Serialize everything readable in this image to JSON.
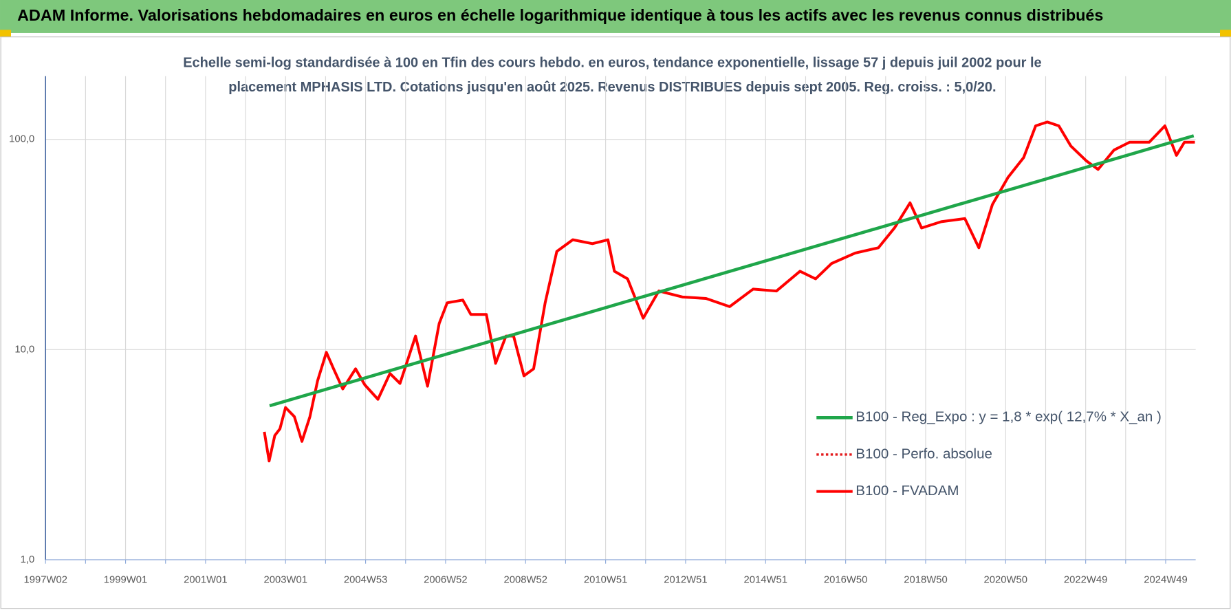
{
  "chart_data": {
    "type": "line",
    "title": "ADAM Informe. Valorisations hebdomadaires en euros en échelle logarithmique identique à tous les actifs avec les revenus connus distribués",
    "subtitle": [
      "Echelle semi-log standardisée à 100 en Tfin des cours hebdo. en euros, tendance exponentielle, lissage 57 j depuis juil 2002 pour le",
      "placement MPHASIS LTD. Cotations jusqu'en août 2025. Revenus DISTRIBUES depuis sept 2005. Reg. croiss. : 5,0/20."
    ],
    "log_y": true,
    "grid": true,
    "legend": "right",
    "ylim": [
      1,
      200
    ],
    "yticks": [
      {
        "value": 1,
        "label": "1,0"
      },
      {
        "value": 10,
        "label": "10,0"
      },
      {
        "value": 100,
        "label": "100,0"
      }
    ],
    "xlim": [
      1997.0,
      2025.75
    ],
    "xticks": [
      {
        "value": 1997,
        "label": "1997W02"
      },
      {
        "value": 1999,
        "label": "1999W01"
      },
      {
        "value": 2001,
        "label": "2001W01"
      },
      {
        "value": 2003,
        "label": "2003W01"
      },
      {
        "value": 2005,
        "label": "2004W53"
      },
      {
        "value": 2007,
        "label": "2006W52"
      },
      {
        "value": 2009,
        "label": "2008W52"
      },
      {
        "value": 2011,
        "label": "2010W51"
      },
      {
        "value": 2013,
        "label": "2012W51"
      },
      {
        "value": 2015,
        "label": "2014W51"
      },
      {
        "value": 2017,
        "label": "2016W50"
      },
      {
        "value": 2019,
        "label": "2018W50"
      },
      {
        "value": 2021,
        "label": "2020W50"
      },
      {
        "value": 2023,
        "label": "2022W49"
      },
      {
        "value": 2025,
        "label": "2024W49"
      }
    ],
    "x_minor_ticks": [
      1998,
      2000,
      2002,
      2004,
      2006,
      2008,
      2010,
      2012,
      2014,
      2016,
      2018,
      2020,
      2022,
      2024
    ],
    "series": [
      {
        "name": "B100 - Reg_Expo : y = 1,8 * exp( 12,7% *  X_an )",
        "color": "#1fa64a",
        "style": "solid",
        "width": 4,
        "x": [
          2002.6,
          2025.7
        ],
        "values": [
          5.4,
          104
        ]
      },
      {
        "name": "B100 - Perfo. absolue",
        "color": "#e31a1c",
        "style": "dotted",
        "width": 3,
        "x": [],
        "values": []
      },
      {
        "name": "B100 - FVADAM",
        "color": "#ff0000",
        "style": "solid",
        "width": 3.5,
        "x": [
          2002.47,
          2002.59,
          2002.73,
          2002.86,
          2003.0,
          2003.22,
          2003.41,
          2003.61,
          2003.8,
          2004.02,
          2004.2,
          2004.43,
          2004.75,
          2004.98,
          2005.31,
          2005.61,
          2005.86,
          2006.25,
          2006.55,
          2006.84,
          2007.04,
          2007.43,
          2007.63,
          2008.02,
          2008.25,
          2008.51,
          2008.7,
          2008.96,
          2009.2,
          2009.49,
          2009.78,
          2010.18,
          2010.67,
          2011.06,
          2011.22,
          2011.55,
          2011.94,
          2012.33,
          2012.92,
          2013.51,
          2014.1,
          2014.69,
          2015.27,
          2015.86,
          2016.25,
          2016.65,
          2017.24,
          2017.82,
          2018.22,
          2018.61,
          2018.9,
          2019.39,
          2019.98,
          2020.33,
          2020.67,
          2021.06,
          2021.45,
          2021.75,
          2022.04,
          2022.33,
          2022.63,
          2023.02,
          2023.31,
          2023.71,
          2024.1,
          2024.59,
          2024.98,
          2025.27,
          2025.47,
          2025.73
        ],
        "values": [
          4.06,
          2.95,
          3.9,
          4.2,
          5.3,
          4.8,
          3.66,
          4.8,
          7.1,
          9.7,
          8.1,
          6.5,
          8.1,
          6.8,
          5.8,
          7.7,
          6.9,
          11.6,
          6.7,
          13.3,
          16.7,
          17.2,
          14.7,
          14.7,
          8.6,
          11.6,
          11.6,
          7.5,
          8.1,
          16.7,
          29.3,
          33.3,
          31.9,
          33.3,
          23.6,
          21.7,
          14.1,
          19,
          17.8,
          17.5,
          16.0,
          19.4,
          19,
          23.6,
          21.7,
          25.7,
          28.8,
          30.5,
          37.9,
          49.9,
          37.9,
          40.6,
          42,
          30.5,
          49,
          66,
          82,
          116,
          121,
          116,
          93,
          79,
          72,
          89,
          97,
          97,
          116,
          84,
          97,
          97
        ]
      }
    ]
  }
}
